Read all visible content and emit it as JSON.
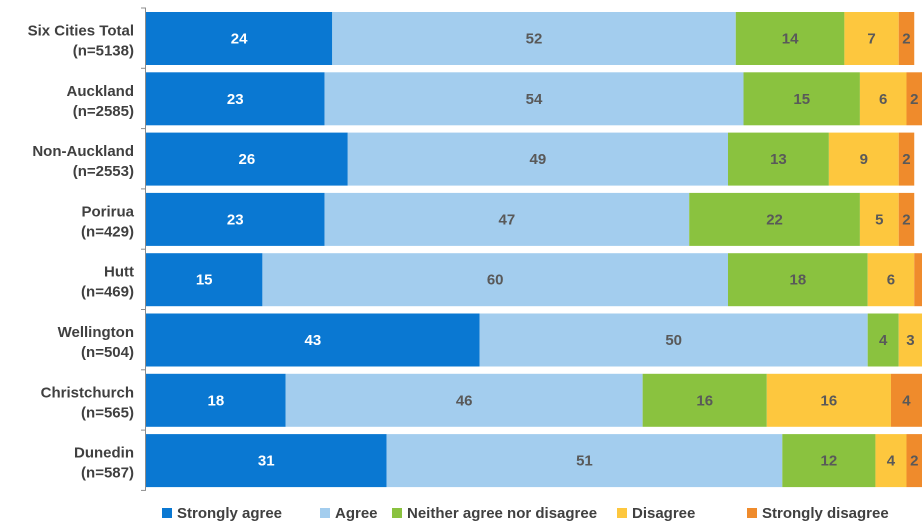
{
  "chart_data": {
    "type": "bar",
    "orientation": "horizontal",
    "stacked": true,
    "categories": [
      "Six Cities Total (n=5138)",
      "Auckland (n=2585)",
      "Non-Auckland (n=2553)",
      "Porirua (n=429)",
      "Hutt (n=469)",
      "Wellington (n=504)",
      "Christchurch (n=565)",
      "Dunedin (n=587)"
    ],
    "category_lines": [
      [
        "Six Cities Total",
        "(n=5138)"
      ],
      [
        "Auckland",
        "(n=2585)"
      ],
      [
        "Non-Auckland",
        "(n=2553)"
      ],
      [
        "Porirua",
        "(n=429)"
      ],
      [
        "Hutt",
        "(n=469)"
      ],
      [
        "Wellington",
        "(n=504)"
      ],
      [
        "Christchurch",
        "(n=565)"
      ],
      [
        "Dunedin",
        "(n=587)"
      ]
    ],
    "series": [
      {
        "name": "Strongly agree",
        "color": "#0a78d2",
        "label_color": "#ffffff",
        "values": [
          24,
          23,
          26,
          23,
          15,
          43,
          18,
          31
        ]
      },
      {
        "name": "Agree",
        "color": "#a3cdee",
        "label_color": "#595959",
        "values": [
          52,
          54,
          49,
          47,
          60,
          50,
          46,
          51
        ]
      },
      {
        "name": "Neither agree nor disagree",
        "color": "#8ac23f",
        "label_color": "#595959",
        "values": [
          14,
          15,
          13,
          22,
          18,
          4,
          16,
          12
        ]
      },
      {
        "name": "Disagree",
        "color": "#fdc73e",
        "label_color": "#595959",
        "values": [
          7,
          6,
          9,
          5,
          6,
          3,
          16,
          4
        ]
      },
      {
        "name": "Strongly disagree",
        "color": "#ef8b2c",
        "label_color": "#595959",
        "values": [
          2,
          2,
          2,
          2,
          1,
          0,
          4,
          2
        ]
      }
    ],
    "data_labels": [
      [
        "24",
        "52",
        "14",
        "7",
        "2"
      ],
      [
        "23",
        "54",
        "15",
        "6",
        "2"
      ],
      [
        "26",
        "49",
        "13",
        "9",
        "2"
      ],
      [
        "23",
        "47",
        "22",
        "5",
        "2"
      ],
      [
        "15",
        "60",
        "18",
        "6",
        ""
      ],
      [
        "43",
        "50",
        "4",
        "3",
        ""
      ],
      [
        "18",
        "46",
        "16",
        "16",
        "4"
      ],
      [
        "31",
        "51",
        "12",
        "4",
        "2"
      ]
    ],
    "xlim": [
      0,
      100
    ],
    "legend_position": "bottom",
    "grid": false
  }
}
